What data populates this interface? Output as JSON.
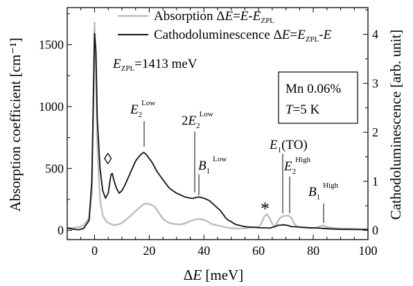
{
  "chart_data": {
    "type": "line",
    "xlabel": "ΔE [meV]",
    "ylabel_left": "Absorption coefficient [cm⁻¹]",
    "ylabel_right": "Cathodoluminescence [arb. unit]",
    "xlim": [
      -10,
      100
    ],
    "ylim_left": [
      -75,
      1800
    ],
    "ylim_right": [
      -0.1894,
      4.545
    ],
    "x_ticks": [
      0,
      20,
      40,
      60,
      80,
      100
    ],
    "y_ticks_left": [
      0,
      500,
      1000,
      1500
    ],
    "y_ticks_right": [
      0,
      1,
      2,
      3,
      4
    ],
    "legend_position": "top-left",
    "series": [
      {
        "name": "Absorption ΔE=E-E_ZPL",
        "axis": "left",
        "color": "#bdbdbd",
        "points": [
          [
            -10,
            15
          ],
          [
            -8,
            20
          ],
          [
            -6,
            25
          ],
          [
            -4,
            40
          ],
          [
            -2,
            100
          ],
          [
            -1,
            300
          ],
          [
            -0.5,
            900
          ],
          [
            0,
            1680
          ],
          [
            0.5,
            1300
          ],
          [
            1,
            700
          ],
          [
            2,
            250
          ],
          [
            3,
            120
          ],
          [
            4,
            80
          ],
          [
            5,
            60
          ],
          [
            6,
            50
          ],
          [
            7,
            42
          ],
          [
            8,
            45
          ],
          [
            9,
            50
          ],
          [
            10,
            60
          ],
          [
            11,
            75
          ],
          [
            12,
            95
          ],
          [
            13,
            115
          ],
          [
            14,
            135
          ],
          [
            15,
            155
          ],
          [
            16,
            175
          ],
          [
            17,
            195
          ],
          [
            18,
            212
          ],
          [
            19,
            215
          ],
          [
            20,
            212
          ],
          [
            21,
            205
          ],
          [
            22,
            190
          ],
          [
            23,
            160
          ],
          [
            24,
            125
          ],
          [
            25,
            95
          ],
          [
            26,
            75
          ],
          [
            27,
            62
          ],
          [
            28,
            55
          ],
          [
            29,
            52
          ],
          [
            30,
            50
          ],
          [
            31,
            48
          ],
          [
            32,
            50
          ],
          [
            33,
            55
          ],
          [
            34,
            65
          ],
          [
            35,
            75
          ],
          [
            36,
            82
          ],
          [
            37,
            88
          ],
          [
            38,
            92
          ],
          [
            39,
            90
          ],
          [
            40,
            85
          ],
          [
            41,
            75
          ],
          [
            42,
            62
          ],
          [
            43,
            50
          ],
          [
            44,
            45
          ],
          [
            45,
            40
          ],
          [
            46,
            35
          ],
          [
            47,
            30
          ],
          [
            48,
            25
          ],
          [
            49,
            20
          ],
          [
            50,
            18
          ],
          [
            52,
            15
          ],
          [
            54,
            15
          ],
          [
            56,
            18
          ],
          [
            58,
            22
          ],
          [
            59,
            25
          ],
          [
            60,
            30
          ],
          [
            61,
            55
          ],
          [
            62,
            110
          ],
          [
            63,
            130
          ],
          [
            64,
            100
          ],
          [
            65,
            50
          ],
          [
            66,
            30
          ],
          [
            67,
            70
          ],
          [
            68,
            105
          ],
          [
            69,
            115
          ],
          [
            70,
            118
          ],
          [
            71,
            120
          ],
          [
            72,
            100
          ],
          [
            73,
            55
          ],
          [
            74,
            30
          ],
          [
            75,
            25
          ],
          [
            77,
            20
          ],
          [
            79,
            18
          ],
          [
            81,
            20
          ],
          [
            82,
            30
          ],
          [
            83,
            35
          ],
          [
            84,
            38
          ],
          [
            85,
            25
          ],
          [
            87,
            20
          ],
          [
            90,
            15
          ],
          [
            95,
            12
          ],
          [
            100,
            10
          ]
        ]
      },
      {
        "name": "Cathodoluminescence ΔE=E_ZPL-E",
        "axis": "left",
        "color": "#111111",
        "points": [
          [
            -10,
            20
          ],
          [
            -8,
            10
          ],
          [
            -6,
            5
          ],
          [
            -4,
            15
          ],
          [
            -2,
            80
          ],
          [
            -1,
            400
          ],
          [
            -0.5,
            1000
          ],
          [
            0,
            1590
          ],
          [
            0.5,
            1450
          ],
          [
            1,
            900
          ],
          [
            2,
            500
          ],
          [
            3,
            320
          ],
          [
            4,
            260
          ],
          [
            5,
            300
          ],
          [
            6,
            450
          ],
          [
            6.5,
            460
          ],
          [
            7,
            410
          ],
          [
            8,
            340
          ],
          [
            9,
            300
          ],
          [
            10,
            320
          ],
          [
            11,
            360
          ],
          [
            12,
            410
          ],
          [
            13,
            460
          ],
          [
            14,
            510
          ],
          [
            15,
            560
          ],
          [
            16,
            590
          ],
          [
            17,
            615
          ],
          [
            18,
            630
          ],
          [
            19,
            610
          ],
          [
            20,
            580
          ],
          [
            21,
            550
          ],
          [
            22,
            510
          ],
          [
            23,
            470
          ],
          [
            24,
            440
          ],
          [
            25,
            410
          ],
          [
            26,
            380
          ],
          [
            27,
            350
          ],
          [
            28,
            330
          ],
          [
            29,
            315
          ],
          [
            30,
            300
          ],
          [
            31,
            290
          ],
          [
            32,
            280
          ],
          [
            33,
            270
          ],
          [
            34,
            265
          ],
          [
            35,
            260
          ],
          [
            36,
            258
          ],
          [
            37,
            265
          ],
          [
            38,
            270
          ],
          [
            39,
            265
          ],
          [
            40,
            260
          ],
          [
            41,
            250
          ],
          [
            42,
            240
          ],
          [
            43,
            220
          ],
          [
            44,
            200
          ],
          [
            45,
            180
          ],
          [
            46,
            160
          ],
          [
            47,
            130
          ],
          [
            48,
            100
          ],
          [
            49,
            80
          ],
          [
            50,
            70
          ],
          [
            51,
            55
          ],
          [
            52,
            45
          ],
          [
            53,
            40
          ],
          [
            54,
            35
          ],
          [
            55,
            30
          ],
          [
            56,
            28
          ],
          [
            58,
            25
          ],
          [
            60,
            22
          ],
          [
            62,
            20
          ],
          [
            64,
            18
          ],
          [
            66,
            30
          ],
          [
            67,
            40
          ],
          [
            68,
            42
          ],
          [
            69,
            45
          ],
          [
            70,
            42
          ],
          [
            71,
            38
          ],
          [
            72,
            30
          ],
          [
            74,
            28
          ],
          [
            76,
            25
          ],
          [
            78,
            22
          ],
          [
            80,
            20
          ],
          [
            82,
            18
          ],
          [
            84,
            15
          ],
          [
            86,
            12
          ],
          [
            88,
            10
          ],
          [
            90,
            8
          ],
          [
            92,
            8
          ],
          [
            95,
            7
          ],
          [
            100,
            5
          ]
        ]
      }
    ],
    "legend": [
      {
        "pre": "Absorption Δ",
        "v1": "E",
        "mid": "=",
        "v2": "E",
        "tail": "-",
        "v3": "E",
        "sub": "ZPL",
        "post": ""
      },
      {
        "pre": "Cathodoluminescence Δ",
        "v1": "E",
        "mid": "=",
        "v2": "E",
        "sub": "ZPL",
        "tail": "-",
        "v3": "E",
        "post": ""
      }
    ],
    "annotations": {
      "zpl": {
        "var": "E",
        "sub": "ZPL",
        "value": "=1413 meV"
      },
      "sample_box": {
        "line1": "Mn 0.06%",
        "line2_var": "T",
        "line2_val": "=5 K"
      },
      "peaks": [
        {
          "var": "E",
          "sub": "2",
          "sup": "Low",
          "prefix": "",
          "x": 18.3
        },
        {
          "prefix": "2",
          "var": "E",
          "sub": "2",
          "sup": "Low",
          "x": 36.8
        },
        {
          "var": "B",
          "sub": "1",
          "sup": "Low",
          "prefix": "",
          "x": 37.8
        },
        {
          "var": "E",
          "sub": "1",
          "sup": "",
          "suffix": "(TO)",
          "prefix": "",
          "x": 69.1
        },
        {
          "var": "E",
          "sub": "2",
          "sup": "High",
          "prefix": "",
          "x": 71.0
        },
        {
          "var": "B",
          "sub": "1",
          "sup": "High",
          "prefix": "",
          "x": 83.6
        }
      ],
      "diamond": {
        "symbol": "◊",
        "x": 6.3
      },
      "star": {
        "symbol": "*",
        "x": 62.9
      }
    }
  }
}
